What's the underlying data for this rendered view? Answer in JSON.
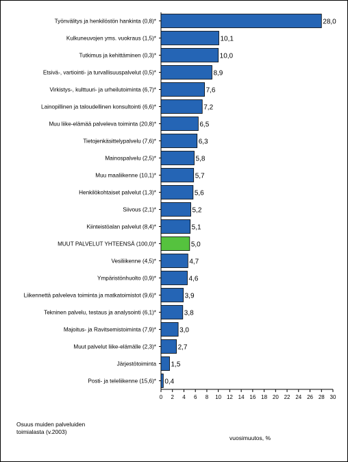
{
  "chart_data": {
    "type": "bar",
    "orientation": "horizontal",
    "categories": [
      "Työnvälitys ja henkilöstön hankinta (0,8)*",
      "Kulkuneuvojen yms. vuokraus (1,5)*",
      "Tutkimus ja kehittäminen (0,3)*",
      "Etsivä-, vartiointi- ja turvallisuuspalvelut (0,5)*",
      "Virkistys-, kulttuuri- ja urheilutoiminta (6,7)*",
      "Lainopillinen ja taloudellinen konsultointi (6,6)*",
      "Muu liike-elämää palveleva toiminta (20,8)*",
      "Tietojenkäsittelypalvelu (7,6)*",
      "Mainospalvelu (2,5)*",
      "Muu maaliikenne (10,1)*",
      "Henkilökohtaiset palvelut (1,3)*",
      "Siivous (2,1)*",
      "Kiinteistöalan palvelut (8,4)*",
      "MUUT PALVELUT YHTEENSÄ (100,0)*",
      "Vesiliikenne (4,5)*",
      "Ympäristönhuolto (0,9)*",
      "Liikennettä palveleva toiminta ja matkatoimistot (9,6)*",
      "Tekninen palvelu, testaus ja analysointi (6,1)*",
      "Majoitus- ja Ravitsemistoiminta (7,9)*",
      "Muut palvelut liike-elämälle (2,3)*",
      "Järjestötoiminta",
      "Posti- ja teleliikenne (15,6)*"
    ],
    "values": [
      28.0,
      10.1,
      10.0,
      8.9,
      7.6,
      7.2,
      6.5,
      6.3,
      5.8,
      5.7,
      5.6,
      5.2,
      5.1,
      5.0,
      4.7,
      4.6,
      3.9,
      3.8,
      3.0,
      2.7,
      1.5,
      0.4
    ],
    "value_labels": [
      "28,0",
      "10,1",
      "10,0",
      "8,9",
      "7,6",
      "7,2",
      "6,5",
      "6,3",
      "5,8",
      "5,7",
      "5,6",
      "5,2",
      "5,1",
      "5,0",
      "4,7",
      "4,6",
      "3,9",
      "3,8",
      "3,0",
      "2,7",
      "1,5",
      "0,4"
    ],
    "highlight_index": 13,
    "xlim": [
      0,
      30
    ],
    "xticks": [
      0,
      2,
      4,
      6,
      8,
      10,
      12,
      14,
      16,
      18,
      20,
      22,
      24,
      26,
      28,
      30
    ],
    "xlabel": "vuosimuutos, %",
    "grid": false,
    "colors": {
      "bar": "#2565b5",
      "highlight": "#55c23e",
      "bar_edge": "#000000"
    }
  },
  "notes": {
    "share_line1": "Osuus muiden palveluiden",
    "share_line2": "toimialasta (v.2003)"
  }
}
